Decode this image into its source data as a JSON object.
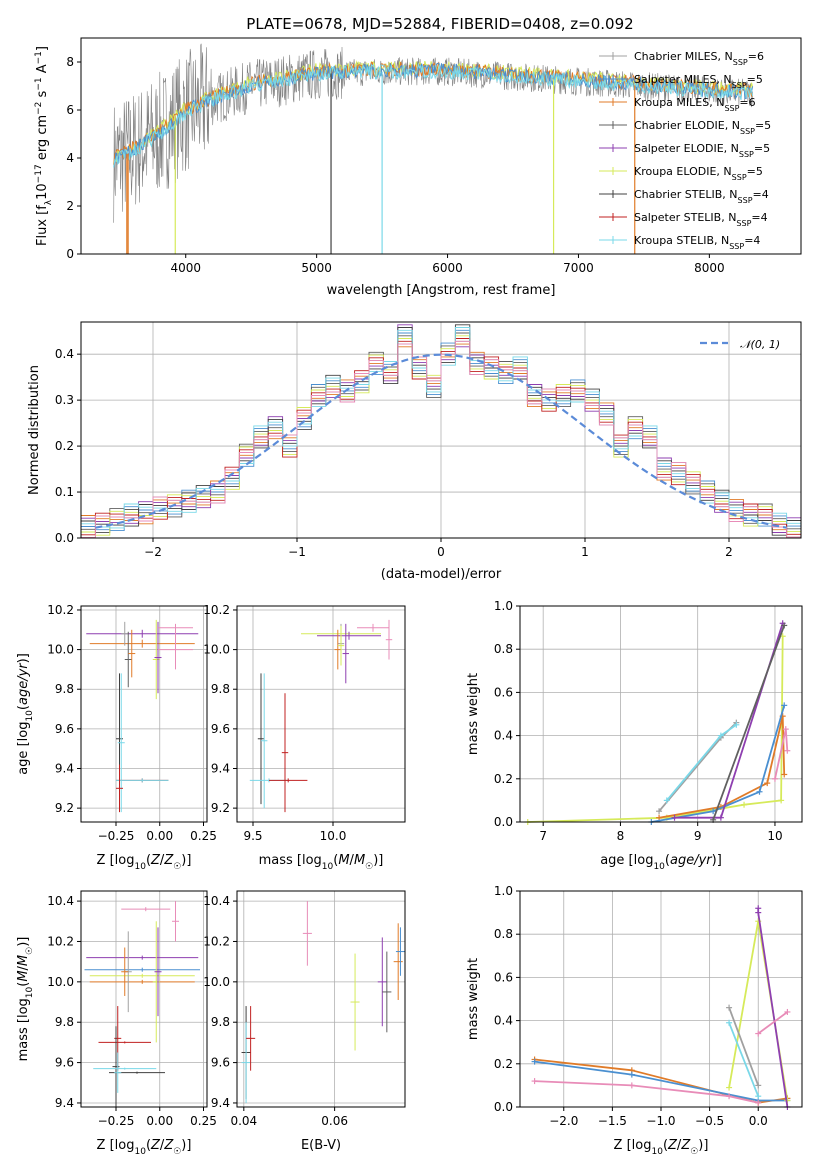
{
  "title": "PLATE=0678, MJD=52884, FIBERID=0408, z=0.092",
  "colors": {
    "c_miles": "#a0a0a0",
    "s_miles": "#4a8fd0",
    "k_miles": "#e07b28",
    "c_elodie": "#606060",
    "s_elodie": "#8e3fb0",
    "k_elodie": "#d6ea5a",
    "c_stelib": "#404040",
    "s_stelib": "#c02020",
    "k_stelib": "#7ad8e8",
    "gauss": "#5b8bd8",
    "pink": "#e88cb8"
  },
  "chart_data": [
    {
      "type": "line",
      "name": "spectrum",
      "xlabel": "wavelength [Angstrom, rest frame]",
      "ylabel": "Flux [f_λ 10^-17 erg cm^-2 s^-1 A^-1]",
      "xlim": [
        3200,
        8700
      ],
      "ylim": [
        0,
        9
      ],
      "xticks": [
        "4000",
        "5000",
        "6000",
        "7000",
        "8000"
      ],
      "yticks": [
        "0",
        "2",
        "4",
        "6",
        "8"
      ],
      "legend": [
        "Chabrier MILES, N_SSP=6",
        "Salpeter MILES, N_SSP=5",
        "Kroupa MILES, N_SSP=6",
        "Chabrier ELODIE, N_SSP=5",
        "Salpeter ELODIE, N_SSP=5",
        "Kroupa ELODIE, N_SSP=5",
        "Chabrier STELIB, N_SSP=4",
        "Salpeter STELIB, N_SSP=4",
        "Kroupa STELIB, N_SSP=4"
      ],
      "legend_position": "right",
      "continuum": {
        "x": [
          3450,
          3600,
          3800,
          4000,
          4200,
          4500,
          5000,
          5500,
          6000,
          6500,
          7000,
          7500,
          8000,
          8300
        ],
        "y": [
          3.9,
          4.3,
          5.0,
          5.9,
          6.4,
          7.0,
          7.5,
          7.6,
          7.6,
          7.4,
          7.2,
          7.0,
          6.8,
          6.7
        ]
      }
    },
    {
      "type": "line",
      "name": "residual-histogram",
      "xlabel": "(data-model)/error",
      "ylabel": "Normed distribution",
      "xlim": [
        -2.5,
        2.5
      ],
      "ylim": [
        0,
        0.47
      ],
      "xticks": [
        "−2",
        "−1",
        "0",
        "1",
        "2"
      ],
      "yticks": [
        "0.0",
        "0.1",
        "0.2",
        "0.3",
        "0.4"
      ],
      "legend": [
        "𝒩(0, 1)"
      ],
      "hist_centers": [
        -2.45,
        -2.35,
        -2.25,
        -2.15,
        -2.05,
        -1.95,
        -1.85,
        -1.75,
        -1.65,
        -1.55,
        -1.45,
        -1.35,
        -1.25,
        -1.15,
        -1.05,
        -0.95,
        -0.85,
        -0.75,
        -0.65,
        -0.55,
        -0.45,
        -0.35,
        -0.25,
        -0.15,
        -0.05,
        0.05,
        0.15,
        0.25,
        0.35,
        0.45,
        0.55,
        0.65,
        0.75,
        0.85,
        0.95,
        1.05,
        1.15,
        1.25,
        1.35,
        1.45,
        1.55,
        1.65,
        1.75,
        1.85,
        1.95,
        2.05,
        2.15,
        2.25,
        2.35,
        2.45
      ],
      "hist_values": [
        0.025,
        0.03,
        0.04,
        0.05,
        0.055,
        0.065,
        0.07,
        0.08,
        0.09,
        0.1,
        0.13,
        0.18,
        0.22,
        0.24,
        0.2,
        0.26,
        0.31,
        0.33,
        0.32,
        0.34,
        0.38,
        0.36,
        0.44,
        0.37,
        0.33,
        0.4,
        0.44,
        0.38,
        0.37,
        0.36,
        0.37,
        0.31,
        0.3,
        0.31,
        0.32,
        0.3,
        0.27,
        0.2,
        0.24,
        0.22,
        0.15,
        0.14,
        0.12,
        0.1,
        0.08,
        0.06,
        0.05,
        0.05,
        0.03,
        0.02
      ]
    },
    {
      "type": "scatter",
      "name": "age-vs-Z",
      "xlabel": "Z [log10(Z/Z☉)]",
      "ylabel": "age  [log10(age/yr)]",
      "xlim": [
        -0.45,
        0.27
      ],
      "ylim": [
        9.13,
        10.22
      ],
      "xticks": [
        "−0.25",
        "0.00",
        "0.25"
      ],
      "yticks": [
        "9.2",
        "9.4",
        "9.6",
        "9.8",
        "10.0",
        "10.2"
      ]
    },
    {
      "type": "scatter",
      "name": "age-vs-mass",
      "xlabel": "mass [log10(M/M☉)]",
      "ylabel": "",
      "xlim": [
        9.4,
        10.45
      ],
      "ylim": [
        9.13,
        10.22
      ],
      "xticks": [
        "9.5",
        "10.0"
      ],
      "yticks": [
        "9.2",
        "9.4",
        "9.6",
        "9.8",
        "10.0",
        "10.2"
      ]
    },
    {
      "type": "line",
      "name": "mass-weight-vs-age",
      "xlabel": "age  [log10(age/yr)]",
      "ylabel": "mass weight",
      "xlim": [
        6.7,
        10.35
      ],
      "ylim": [
        0,
        1
      ],
      "xticks": [
        "7",
        "8",
        "9",
        "10"
      ],
      "yticks": [
        "0.0",
        "0.2",
        "0.4",
        "0.6",
        "0.8",
        "1.0"
      ]
    },
    {
      "type": "scatter",
      "name": "mass-vs-Z",
      "xlabel": "Z [log10(Z/Z☉)]",
      "ylabel": "mass [log10(M/M☉)]",
      "xlim": [
        -0.45,
        0.27
      ],
      "ylim": [
        9.38,
        10.45
      ],
      "xticks": [
        "−0.25",
        "0.00",
        "0.25"
      ],
      "yticks": [
        "9.4",
        "9.6",
        "9.8",
        "10.0",
        "10.2",
        "10.4"
      ]
    },
    {
      "type": "scatter",
      "name": "mass-vs-EBV",
      "xlabel": "E(B-V)",
      "ylabel": "",
      "xlim": [
        0.0385,
        0.0755
      ],
      "ylim": [
        9.38,
        10.45
      ],
      "xticks": [
        "0.04",
        "0.06"
      ],
      "yticks": [
        "9.4",
        "9.6",
        "9.8",
        "10.0",
        "10.2",
        "10.4"
      ]
    },
    {
      "type": "line",
      "name": "mass-weight-vs-Z",
      "xlabel": "Z [log10(Z/Z☉)]",
      "ylabel": "mass weight",
      "xlim": [
        -2.45,
        0.45
      ],
      "ylim": [
        0,
        1
      ],
      "xticks": [
        "−2.0",
        "−1.5",
        "−1.0",
        "−0.5",
        "0.0"
      ],
      "yticks": [
        "0.0",
        "0.2",
        "0.4",
        "0.6",
        "0.8",
        "1.0"
      ]
    }
  ]
}
